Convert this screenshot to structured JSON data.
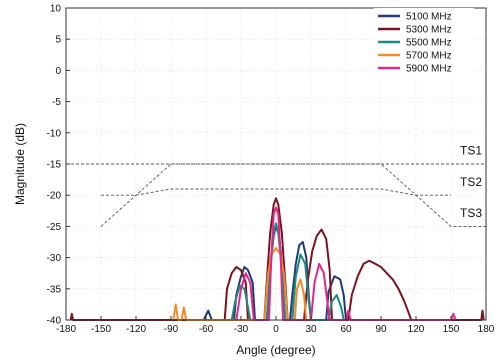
{
  "chart_data": {
    "type": "line",
    "title": "",
    "xlabel": "Angle (degree)",
    "ylabel": "Magnitude (dB)",
    "xlim": [
      -180,
      180
    ],
    "ylim": [
      -40,
      10
    ],
    "xticks": [
      -180,
      -150,
      -120,
      -90,
      -60,
      -30,
      0,
      30,
      60,
      90,
      120,
      150,
      180
    ],
    "yticks": [
      10,
      5,
      0,
      -5,
      -10,
      -15,
      -20,
      -25,
      -30,
      -35,
      -40
    ],
    "grid": true,
    "legend_position": "top-right",
    "series": [
      {
        "name": "5100 MHz",
        "color": "#1f3b73",
        "points": [
          [
            -62,
            -40
          ],
          [
            -58,
            -38.5
          ],
          [
            -55,
            -40
          ],
          [
            -36,
            -40
          ],
          [
            -34,
            -36
          ],
          [
            -30,
            -33
          ],
          [
            -27,
            -31.5
          ],
          [
            -24,
            -32
          ],
          [
            -20,
            -34
          ],
          [
            -18,
            -40
          ],
          [
            -8,
            -40
          ],
          [
            -6,
            -36
          ],
          [
            -4,
            -30
          ],
          [
            -2,
            -26.5
          ],
          [
            0,
            -25
          ],
          [
            2,
            -26
          ],
          [
            4,
            -29
          ],
          [
            6,
            -35
          ],
          [
            8,
            -40
          ],
          [
            12,
            -40
          ],
          [
            14,
            -36
          ],
          [
            17,
            -31
          ],
          [
            20,
            -28
          ],
          [
            23,
            -27.5
          ],
          [
            26,
            -30
          ],
          [
            28,
            -36
          ],
          [
            30,
            -40
          ],
          [
            43,
            -40
          ],
          [
            45,
            -35.5
          ],
          [
            50,
            -33
          ],
          [
            55,
            -33.5
          ],
          [
            58,
            -36
          ],
          [
            60,
            -40
          ]
        ]
      },
      {
        "name": "5300 MHz",
        "color": "#7a1420",
        "points": [
          [
            -176,
            -40
          ],
          [
            -175,
            -39
          ],
          [
            -174,
            -40
          ],
          [
            -44,
            -40
          ],
          [
            -42,
            -35
          ],
          [
            -38,
            -32.5
          ],
          [
            -34,
            -31.5
          ],
          [
            -30,
            -32
          ],
          [
            -26,
            -34
          ],
          [
            -24,
            -40
          ],
          [
            -10,
            -40
          ],
          [
            -8,
            -34
          ],
          [
            -5,
            -26
          ],
          [
            -2,
            -21.5
          ],
          [
            0,
            -20.5
          ],
          [
            2,
            -21.5
          ],
          [
            5,
            -26
          ],
          [
            8,
            -34
          ],
          [
            10,
            -40
          ],
          [
            24,
            -40
          ],
          [
            27,
            -34
          ],
          [
            31,
            -29
          ],
          [
            35,
            -26.5
          ],
          [
            39,
            -25.5
          ],
          [
            43,
            -27
          ],
          [
            46,
            -32
          ],
          [
            48,
            -40
          ],
          [
            62,
            -40
          ],
          [
            65,
            -36
          ],
          [
            70,
            -33
          ],
          [
            75,
            -31
          ],
          [
            80,
            -30.5
          ],
          [
            85,
            -31
          ],
          [
            90,
            -31.5
          ],
          [
            95,
            -32.5
          ],
          [
            100,
            -33.5
          ],
          [
            105,
            -35
          ],
          [
            110,
            -37
          ],
          [
            114,
            -39
          ],
          [
            116,
            -40
          ],
          [
            176,
            -40
          ],
          [
            177,
            -38.5
          ],
          [
            178,
            -40
          ]
        ]
      },
      {
        "name": "5500 MHz",
        "color": "#1f8a82",
        "points": [
          [
            -38,
            -40
          ],
          [
            -35,
            -37
          ],
          [
            -31,
            -34.5
          ],
          [
            -27,
            -35
          ],
          [
            -24,
            -38
          ],
          [
            -22,
            -40
          ],
          [
            -8,
            -40
          ],
          [
            -5,
            -32
          ],
          [
            -2,
            -26
          ],
          [
            0,
            -24.5
          ],
          [
            2,
            -26
          ],
          [
            5,
            -32
          ],
          [
            8,
            -40
          ],
          [
            14,
            -40
          ],
          [
            17,
            -33
          ],
          [
            21,
            -29.5
          ],
          [
            25,
            -31
          ],
          [
            28,
            -37
          ],
          [
            30,
            -40
          ],
          [
            45,
            -40
          ],
          [
            48,
            -37
          ],
          [
            52,
            -36
          ],
          [
            56,
            -38
          ],
          [
            58,
            -40
          ]
        ]
      },
      {
        "name": "5700 MHz",
        "color": "#f08a24",
        "points": [
          [
            -88,
            -40
          ],
          [
            -86,
            -37.5
          ],
          [
            -84,
            -40
          ],
          [
            -81,
            -40
          ],
          [
            -79,
            -38
          ],
          [
            -77,
            -40
          ],
          [
            -10,
            -40
          ],
          [
            -7,
            -33
          ],
          [
            -4,
            -29.5
          ],
          [
            0,
            -28.5
          ],
          [
            4,
            -29.5
          ],
          [
            7,
            -33
          ],
          [
            10,
            -40
          ],
          [
            16,
            -40
          ],
          [
            18,
            -35
          ],
          [
            21,
            -33.5
          ],
          [
            24,
            -36
          ],
          [
            26,
            -40
          ]
        ]
      },
      {
        "name": "5900 MHz",
        "color": "#e0288a",
        "points": [
          [
            -34,
            -40
          ],
          [
            -30,
            -35
          ],
          [
            -26,
            -32.5
          ],
          [
            -22,
            -34
          ],
          [
            -19,
            -40
          ],
          [
            -6,
            -40
          ],
          [
            -4,
            -30
          ],
          [
            -2,
            -23
          ],
          [
            0,
            -22
          ],
          [
            2,
            -23
          ],
          [
            4,
            -30
          ],
          [
            6,
            -40
          ],
          [
            30,
            -40
          ],
          [
            33,
            -34
          ],
          [
            37,
            -31
          ],
          [
            41,
            -32.5
          ],
          [
            44,
            -37
          ],
          [
            46,
            -40
          ],
          [
            60,
            -40
          ],
          [
            62,
            -38.5
          ],
          [
            64,
            -40
          ],
          [
            150,
            -40
          ],
          [
            152,
            -39
          ],
          [
            154,
            -40
          ]
        ]
      }
    ],
    "masks": [
      {
        "name": "TS1",
        "color": "#555555",
        "points": [
          [
            -180,
            -15
          ],
          [
            180,
            -15
          ]
        ]
      },
      {
        "name": "TS2",
        "color": "#555555",
        "points": [
          [
            -150,
            -20
          ],
          [
            -120,
            -20
          ],
          [
            -90,
            -19
          ],
          [
            90,
            -19
          ],
          [
            120,
            -20
          ],
          [
            150,
            -20
          ]
        ]
      },
      {
        "name": "TS3",
        "color": "#555555",
        "points": [
          [
            -150,
            -25
          ],
          [
            -90,
            -15
          ],
          [
            90,
            -15
          ],
          [
            150,
            -25
          ],
          [
            180,
            -25
          ]
        ]
      }
    ]
  }
}
